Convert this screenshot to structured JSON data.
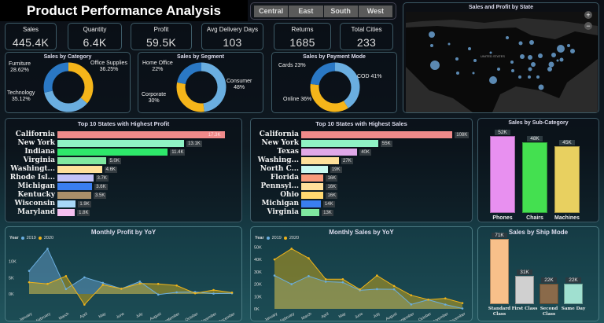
{
  "header": {
    "title": "Product Performance Analysis"
  },
  "region_slicer": {
    "options": [
      "Central",
      "East",
      "South",
      "West"
    ]
  },
  "kpis": [
    {
      "label": "Sales",
      "value": "445.4K"
    },
    {
      "label": "Quantity",
      "value": "6.4K"
    },
    {
      "label": "Profit",
      "value": "59.5K"
    },
    {
      "label": "Avg Delivery Days",
      "value": "103"
    },
    {
      "label": "Returns",
      "value": "1685"
    },
    {
      "label": "Total Cities",
      "value": "233"
    }
  ],
  "map": {
    "title": "Sales and Profit by State",
    "country_label": "UNITED STATES",
    "zoom_in": "+",
    "zoom_out": "−"
  },
  "colors": {
    "dark_blue": "#2a78c4",
    "yellow": "#f5b51a",
    "light_blue": "#6aaee0",
    "series_2019": "#6aaee0",
    "series_2020": "#f0b41a"
  },
  "donuts": [
    {
      "title": "Sales by Category",
      "slices": [
        {
          "label": "Office Supplies",
          "pct_text": "36.25%",
          "value": 36.25,
          "color": "#f5b51a"
        },
        {
          "label": "Technology",
          "pct_text": "35.12%",
          "value": 35.12,
          "color": "#6aaee0"
        },
        {
          "label": "Furniture",
          "pct_text": "28.62%",
          "value": 28.62,
          "color": "#2a78c4"
        }
      ]
    },
    {
      "title": "Sales by Segment",
      "slices": [
        {
          "label": "Consumer",
          "pct_text": "48%",
          "value": 48,
          "color": "#6aaee0"
        },
        {
          "label": "Corporate",
          "pct_text": "30%",
          "value": 30,
          "color": "#f5b51a"
        },
        {
          "label": "Home Office",
          "pct_text": "22%",
          "value": 22,
          "color": "#2a78c4"
        }
      ]
    },
    {
      "title": "Sales by Payment Mode",
      "slices": [
        {
          "label": "COD",
          "pct_text": "41%",
          "value": 41,
          "color": "#6aaee0"
        },
        {
          "label": "Online",
          "pct_text": "36%",
          "value": 36,
          "color": "#f5b51a"
        },
        {
          "label": "Cards",
          "pct_text": "23%",
          "value": 23,
          "color": "#2a78c4"
        }
      ]
    }
  ],
  "chart_data": [
    {
      "type": "bar",
      "orientation": "horizontal",
      "title": "Top 10 States with Highest Profit",
      "categories": [
        "California",
        "New York",
        "Indiana",
        "Virginia",
        "Washingt...",
        "Rhode Isl...",
        "Michigan",
        "Kentucky",
        "Wisconsin",
        "Maryland"
      ],
      "values": [
        17.3,
        13.1,
        11.4,
        5.0,
        4.6,
        3.7,
        3.6,
        3.5,
        1.9,
        1.8
      ],
      "labels": [
        "17.3K",
        "13.1K",
        "11.4K",
        "5.0K",
        "4.6K",
        "3.7K",
        "3.6K",
        "3.5K",
        "1.9K",
        "1.8K"
      ],
      "colors": [
        "#f08a8a",
        "#8ff2c4",
        "#2ee86a",
        "#80e8a0",
        "#ffe09a",
        "#c2c2f8",
        "#3a7ef0",
        "#a88f6a",
        "#a8d8f8",
        "#f6c0f0"
      ]
    },
    {
      "type": "bar",
      "orientation": "horizontal",
      "title": "Top 10 States with Highest Sales",
      "categories": [
        "California",
        "New York",
        "Texas",
        "Washing...",
        "North C...",
        "Florida",
        "Pennsyl...",
        "Ohio",
        "Michigan",
        "Virginia"
      ],
      "values": [
        108,
        55,
        40,
        27,
        19,
        16,
        16,
        16,
        14,
        13
      ],
      "labels": [
        "108K",
        "55K",
        "40K",
        "27K",
        "19K",
        "16K",
        "16K",
        "16K",
        "14K",
        "13K"
      ],
      "colors": [
        "#f08a8a",
        "#8ff2c4",
        "#e0a8e8",
        "#ffe09a",
        "#c8f8f0",
        "#f89a7a",
        "#ffe09a",
        "#ffd870",
        "#3a7ef0",
        "#80e8a0"
      ]
    },
    {
      "type": "bar",
      "title": "Sales by Sub-Category",
      "categories": [
        "Phones",
        "Chairs",
        "Machines"
      ],
      "values": [
        52,
        48,
        45
      ],
      "labels": [
        "52K",
        "48K",
        "45K"
      ],
      "colors": [
        "#e890f0",
        "#44e050",
        "#e8d060"
      ]
    },
    {
      "type": "line",
      "title": "Monthly Profit by YoY",
      "legend_title": "Year",
      "x": [
        "January",
        "February",
        "March",
        "April",
        "May",
        "June",
        "July",
        "August",
        "September",
        "October",
        "November",
        "December"
      ],
      "yticks": [
        "0K",
        "5K",
        "10K"
      ],
      "ylim": [
        -4,
        15
      ],
      "series": [
        {
          "name": "2019",
          "values": [
            7.1,
            13.9,
            1.5,
            5.1,
            3.4,
            1.6,
            3.8,
            -0.2,
            0.5,
            0.6,
            0.1,
            0.2
          ]
        },
        {
          "name": "2020",
          "values": [
            3.6,
            3.1,
            5.5,
            -3.3,
            2.8,
            1.6,
            3.2,
            3.1,
            2.6,
            0.2,
            1.2,
            0.4
          ]
        }
      ]
    },
    {
      "type": "line",
      "title": "Monthly Sales by YoY",
      "legend_title": "Year",
      "x": [
        "January",
        "February",
        "March",
        "April",
        "May",
        "June",
        "July",
        "August",
        "September",
        "October",
        "November",
        "December"
      ],
      "yticks": [
        "0K",
        "10K",
        "20K",
        "30K",
        "40K",
        "50K"
      ],
      "ylim": [
        0,
        50
      ],
      "series": [
        {
          "name": "2019",
          "values": [
            27,
            20,
            26.5,
            22,
            21.5,
            15,
            16,
            15.8,
            3.6,
            7.4,
            3.5,
            0.3
          ]
        },
        {
          "name": "2020",
          "values": [
            40,
            48.7,
            41,
            24,
            24,
            15.7,
            27,
            18.5,
            11,
            7.5,
            8.5,
            4.7
          ]
        }
      ]
    },
    {
      "type": "bar",
      "title": "Sales by Ship Mode",
      "categories": [
        "Standard Class",
        "First Class",
        "Second Class",
        "Same Day"
      ],
      "values": [
        71,
        31,
        22,
        22
      ],
      "labels": [
        "71K",
        "31K",
        "22K",
        "22K"
      ],
      "colors": [
        "#f8c08a",
        "#d0d0d0",
        "#8a6a4a",
        "#a0e0d0"
      ]
    }
  ]
}
